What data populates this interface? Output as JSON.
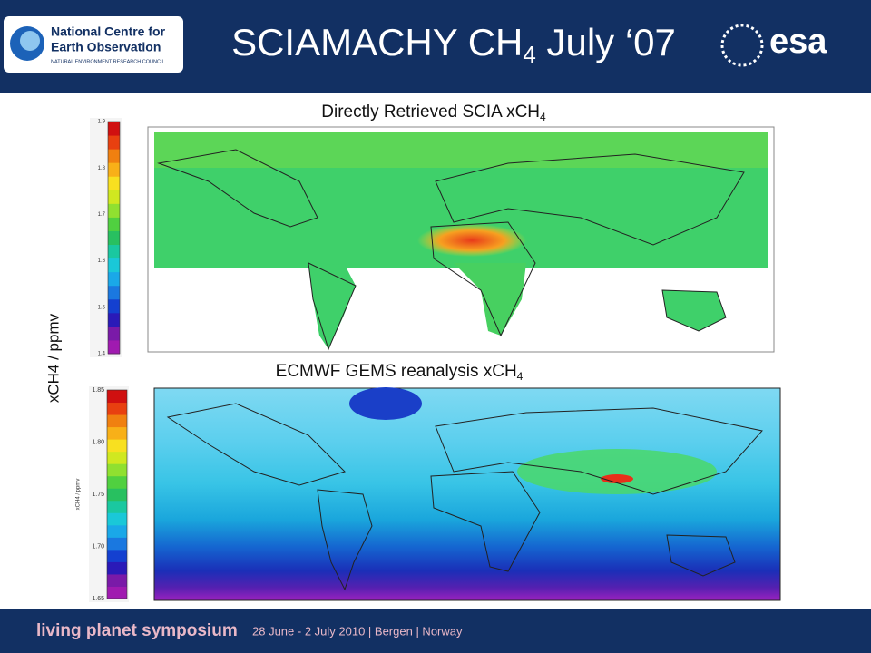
{
  "header": {
    "logo_line1": "National Centre for",
    "logo_line2": "Earth Observation",
    "logo_line3": "NATURAL ENVIRONMENT RESEARCH COUNCIL",
    "title_main": "SCIAMACHY CH",
    "title_sub": "4",
    "title_rest": " July ‘07",
    "esa": "esa"
  },
  "axis_label": "xCH4 / ppmv",
  "map_top": {
    "title": "Directly Retrieved SCIA xCH",
    "title_sub": "4",
    "colorbar_ticks": [
      "1.9",
      "1.8",
      "1.7",
      "1.6",
      "1.5",
      "1.4"
    ]
  },
  "map_bottom": {
    "title": "ECMWF GEMS reanalysis xCH",
    "title_sub": "4",
    "colorbar_label": "xCH4 / ppmv",
    "colorbar_ticks": [
      "1.85",
      "1.80",
      "1.75",
      "1.70",
      "1.65"
    ]
  },
  "footer": {
    "event": "living planet symposium",
    "details": "28 June - 2 July 2010 | Bergen | Norway"
  }
}
